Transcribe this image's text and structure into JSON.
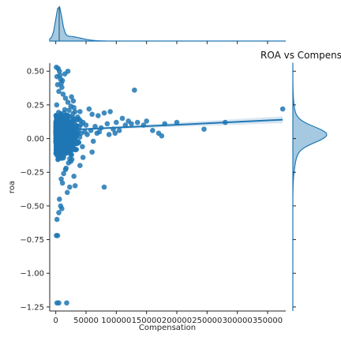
{
  "chart_data": {
    "type": "scatter",
    "title": "ROA vs Compens",
    "xlabel": "Compensation",
    "ylabel": "roa",
    "xlim": [
      -10000,
      380000
    ],
    "ylim": [
      -1.28,
      0.56
    ],
    "x_ticks": [
      0,
      50000,
      100000,
      150000,
      200000,
      250000,
      300000,
      350000
    ],
    "x_tick_labels": [
      "0",
      "50000",
      "100000",
      "150000",
      "200000",
      "250000",
      "300000",
      "350000"
    ],
    "y_ticks": [
      0.5,
      0.25,
      0.0,
      -0.25,
      -0.5,
      -0.75,
      -1.0,
      -1.25
    ],
    "y_tick_labels": [
      "0.50",
      "0.25",
      "0.00",
      "−0.25",
      "−0.50",
      "−0.75",
      "−1.00",
      "−1.25"
    ],
    "grid": false,
    "point_color": "#1f77b4",
    "regression": {
      "x_start": 0,
      "x_end": 375000,
      "y_start": 0.06,
      "y_end": 0.14,
      "ci_low_end": 0.115,
      "ci_high_end": 0.165
    },
    "series": [
      {
        "points": [
          [
            1000,
            0.53
          ],
          [
            4000,
            0.52
          ],
          [
            6000,
            0.5
          ],
          [
            2000,
            0.46
          ],
          [
            8000,
            0.44
          ],
          [
            3000,
            0.4
          ],
          [
            10000,
            0.38
          ],
          [
            5000,
            0.35
          ],
          [
            12000,
            0.33
          ],
          [
            16000,
            0.3
          ],
          [
            20000,
            0.27
          ],
          [
            1500,
            0.25
          ],
          [
            25000,
            0.24
          ],
          [
            30000,
            0.23
          ],
          [
            22000,
            0.21
          ],
          [
            40000,
            0.2
          ],
          [
            55000,
            0.22
          ],
          [
            60000,
            0.18
          ],
          [
            70000,
            0.17
          ],
          [
            80000,
            0.19
          ],
          [
            90000,
            0.2
          ],
          [
            100000,
            0.12
          ],
          [
            110000,
            0.15
          ],
          [
            120000,
            0.13
          ],
          [
            130000,
            0.36
          ],
          [
            35000,
            0.14
          ],
          [
            45000,
            0.12
          ],
          [
            50000,
            0.1
          ],
          [
            65000,
            0.09
          ],
          [
            75000,
            0.08
          ],
          [
            85000,
            0.11
          ],
          [
            95000,
            0.07
          ],
          [
            105000,
            0.06
          ],
          [
            115000,
            0.1
          ],
          [
            125000,
            0.11
          ],
          [
            135000,
            0.12
          ],
          [
            145000,
            0.1
          ],
          [
            150000,
            0.13
          ],
          [
            160000,
            0.06
          ],
          [
            170000,
            0.04
          ],
          [
            175000,
            0.02
          ],
          [
            180000,
            0.11
          ],
          [
            200000,
            0.12
          ],
          [
            245000,
            0.07
          ],
          [
            280000,
            0.12
          ],
          [
            375000,
            0.22
          ],
          [
            20000,
            0.5
          ],
          [
            15000,
            0.48
          ],
          [
            7000,
            0.0
          ],
          [
            14000,
            0.05
          ],
          [
            18000,
            -0.02
          ],
          [
            24000,
            -0.05
          ],
          [
            28000,
            0.02
          ],
          [
            32000,
            -0.08
          ],
          [
            38000,
            -0.03
          ],
          [
            42000,
            0.04
          ],
          [
            26000,
            -0.12
          ],
          [
            21000,
            -0.18
          ],
          [
            17000,
            -0.22
          ],
          [
            13000,
            -0.26
          ],
          [
            9000,
            -0.3
          ],
          [
            11000,
            -0.33
          ],
          [
            23000,
            -0.36
          ],
          [
            19000,
            -0.4
          ],
          [
            6000,
            -0.45
          ],
          [
            8000,
            -0.5
          ],
          [
            10000,
            -0.52
          ],
          [
            5000,
            -0.55
          ],
          [
            2000,
            -0.6
          ],
          [
            16000,
            -0.23
          ],
          [
            30000,
            -0.28
          ],
          [
            32000,
            -0.35
          ],
          [
            40000,
            -0.2
          ],
          [
            45000,
            -0.14
          ],
          [
            60000,
            -0.1
          ],
          [
            80000,
            -0.36
          ],
          [
            3000,
            -0.72
          ],
          [
            1000,
            -0.72
          ],
          [
            2000,
            -1.22
          ],
          [
            5000,
            -1.22
          ],
          [
            18000,
            -1.22
          ],
          [
            4000,
            -0.15
          ],
          [
            12000,
            -0.08
          ],
          [
            27000,
            0.06
          ],
          [
            33000,
            0.08
          ],
          [
            48000,
            0.05
          ],
          [
            52000,
            0.03
          ],
          [
            58000,
            0.06
          ],
          [
            68000,
            0.04
          ],
          [
            72000,
            0.05
          ],
          [
            88000,
            0.03
          ],
          [
            98000,
            0.04
          ],
          [
            62000,
            -0.02
          ],
          [
            44000,
            -0.06
          ],
          [
            36000,
            0.16
          ],
          [
            29000,
            0.28
          ],
          [
            26000,
            0.31
          ],
          [
            11000,
            0.43
          ],
          [
            7000,
            0.47
          ],
          [
            9000,
            0.41
          ]
        ]
      }
    ]
  }
}
